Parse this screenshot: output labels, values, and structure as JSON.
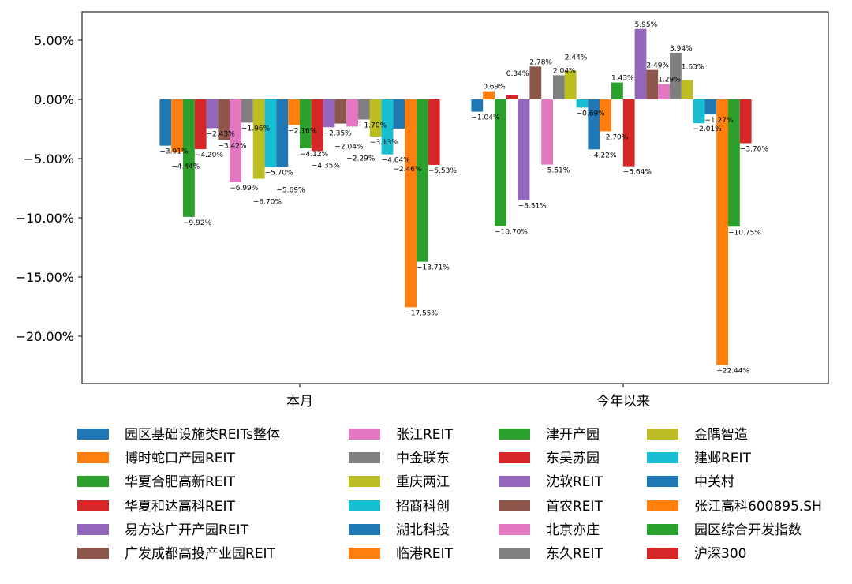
{
  "chart_data": {
    "type": "bar",
    "categories": [
      "本月",
      "今年以来"
    ],
    "ylim": [
      -24,
      7.4
    ],
    "yticks": [
      -20,
      -15,
      -10,
      -5,
      0,
      5
    ],
    "ytick_labels": [
      "-20.00%",
      "-15.00%",
      "-10.00%",
      "-5.00%",
      "0.00%",
      "5.00%"
    ],
    "grid": false,
    "legend_position": "bottom",
    "series": [
      {
        "name": "园区基础设施类REITs整体",
        "color": "#1f77b4",
        "values": [
          -3.91,
          -1.04
        ]
      },
      {
        "name": "博时蛇口产园REIT",
        "color": "#ff7f0e",
        "values": [
          -4.44,
          0.69
        ]
      },
      {
        "name": "华夏合肥高新REIT",
        "color": "#2ca02c",
        "values": [
          -9.92,
          -10.7
        ]
      },
      {
        "name": "华夏和达高科REIT",
        "color": "#d62728",
        "values": [
          -4.2,
          0.34
        ]
      },
      {
        "name": "易方达广开产园REIT",
        "color": "#9467bd",
        "values": [
          -2.43,
          -8.51
        ]
      },
      {
        "name": "广发成都高投产业园REIT",
        "color": "#8c564b",
        "values": [
          -3.42,
          2.78
        ]
      },
      {
        "name": "张江REIT",
        "color": "#e377c2",
        "values": [
          -6.99,
          -5.51
        ]
      },
      {
        "name": "中金联东",
        "color": "#7f7f7f",
        "values": [
          -1.96,
          2.04
        ]
      },
      {
        "name": "重庆两江",
        "color": "#bcbd22",
        "values": [
          -6.7,
          2.44
        ]
      },
      {
        "name": "招商科创",
        "color": "#17becf",
        "values": [
          -5.7,
          -0.69
        ]
      },
      {
        "name": "湖北科投",
        "color": "#1f77b4",
        "values": [
          -5.69,
          -4.22
        ]
      },
      {
        "name": "临港REIT",
        "color": "#ff7f0e",
        "values": [
          -2.16,
          -2.7
        ]
      },
      {
        "name": "津开产园",
        "color": "#2ca02c",
        "values": [
          -4.12,
          1.43
        ]
      },
      {
        "name": "东吴苏园",
        "color": "#d62728",
        "values": [
          -4.35,
          -5.64
        ]
      },
      {
        "name": "沈软REIT",
        "color": "#9467bd",
        "values": [
          -2.35,
          5.95
        ]
      },
      {
        "name": "首农REIT",
        "color": "#8c564b",
        "values": [
          -2.04,
          2.49
        ]
      },
      {
        "name": "北京亦庄",
        "color": "#e377c2",
        "values": [
          -2.29,
          1.29
        ]
      },
      {
        "name": "东久REIT",
        "color": "#7f7f7f",
        "values": [
          -1.7,
          3.94
        ]
      },
      {
        "name": "金隅智造",
        "color": "#bcbd22",
        "values": [
          -3.13,
          1.63
        ]
      },
      {
        "name": "建邺REIT",
        "color": "#17becf",
        "values": [
          -4.64,
          -2.01
        ]
      },
      {
        "name": "中关村",
        "color": "#1f77b4",
        "values": [
          -2.46,
          -1.27
        ]
      },
      {
        "name": "张江高科600895.SH",
        "color": "#ff7f0e",
        "values": [
          -17.55,
          -22.44
        ]
      },
      {
        "name": "园区综合开发指数",
        "color": "#2ca02c",
        "values": [
          -13.71,
          -10.75
        ]
      },
      {
        "name": "沪深300",
        "color": "#d62728",
        "values": [
          -5.53,
          -3.7
        ]
      }
    ]
  }
}
